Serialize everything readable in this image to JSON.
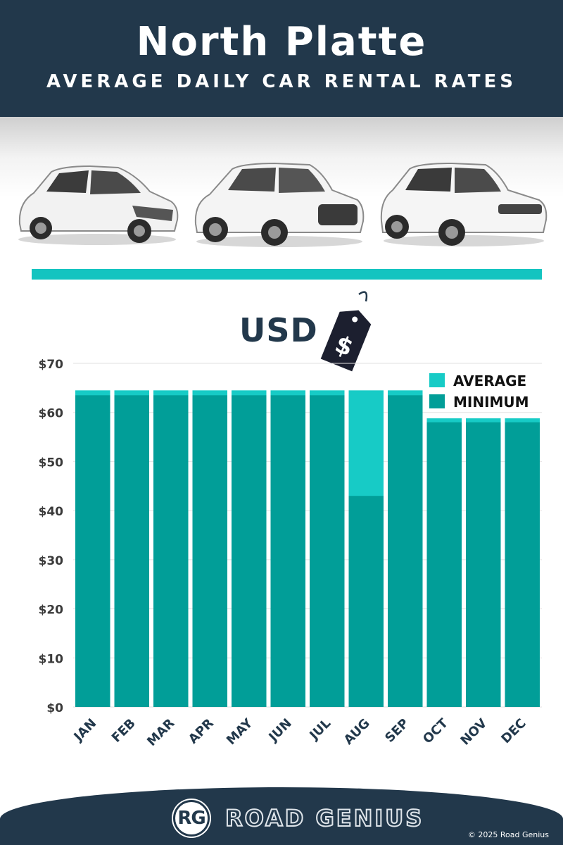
{
  "header": {
    "title": "North Platte",
    "subtitle": "AVERAGE DAILY CAR RENTAL RATES"
  },
  "currency_label": "USD",
  "price_tag_symbol": "$",
  "chart_data": {
    "type": "bar",
    "title": "",
    "xlabel": "",
    "ylabel": "",
    "categories": [
      "JAN",
      "FEB",
      "MAR",
      "APR",
      "MAY",
      "JUN",
      "JUL",
      "AUG",
      "SEP",
      "OCT",
      "NOV",
      "DEC"
    ],
    "series": [
      {
        "name": "AVERAGE",
        "color": "#17cbc6",
        "values": [
          64.5,
          64.5,
          64.5,
          64.5,
          64.5,
          64.5,
          64.5,
          64.5,
          64.5,
          58.8,
          58.8,
          58.8
        ]
      },
      {
        "name": "MINIMUM",
        "color": "#019e98",
        "values": [
          63.5,
          63.5,
          63.5,
          63.5,
          63.5,
          63.5,
          63.5,
          43,
          63.5,
          58,
          58,
          58
        ]
      }
    ],
    "ylim": [
      0,
      70
    ],
    "yticks": [
      0,
      10,
      20,
      30,
      40,
      50,
      60,
      70
    ],
    "ytick_labels": [
      "$0",
      "$10",
      "$20",
      "$30",
      "$40",
      "$50",
      "$60",
      "$70"
    ],
    "grid": true,
    "legend_position": "top-right",
    "overlay": true
  },
  "footer": {
    "logo_initials": "RG",
    "brand": "ROAD GENIUS",
    "copyright": "© 2025 Road Genius"
  },
  "icons": [
    "hatchback-car-icon",
    "suv-car-icon",
    "luxury-suv-icon",
    "price-tag-icon"
  ],
  "colors": {
    "navy": "#22384b",
    "teal_light": "#17cbc6",
    "teal_dark": "#019e98"
  }
}
